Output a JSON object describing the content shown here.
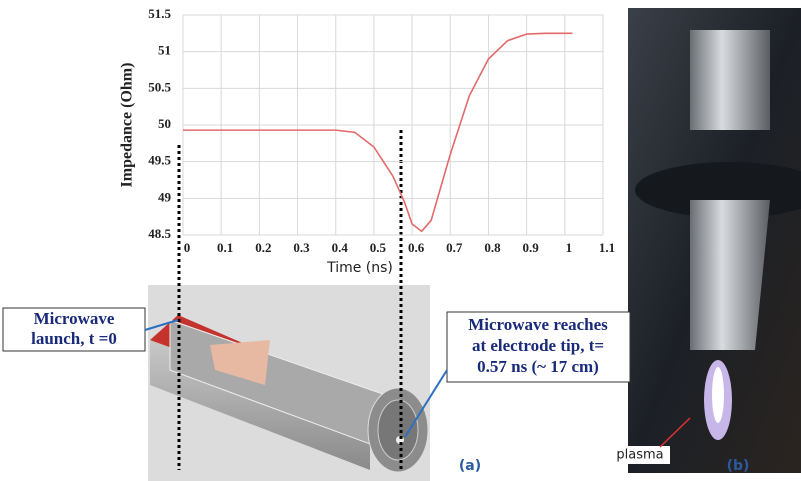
{
  "chart_data": {
    "type": "line",
    "x_label": "Time (ns)",
    "y_label": "Impedance (Ohm)",
    "x": [
      0,
      0.1,
      0.2,
      0.3,
      0.4,
      0.45,
      0.5,
      0.55,
      0.58,
      0.6,
      0.625,
      0.65,
      0.7,
      0.75,
      0.8,
      0.85,
      0.9,
      0.95,
      1.02
    ],
    "series": [
      {
        "color": "#e26a6a",
        "values": [
          49.93,
          49.93,
          49.93,
          49.93,
          49.93,
          49.9,
          49.7,
          49.3,
          48.95,
          48.65,
          48.55,
          48.7,
          49.6,
          50.4,
          50.9,
          51.15,
          51.24,
          51.25,
          51.25
        ]
      }
    ],
    "xlim": [
      0,
      1.1
    ],
    "xticks": [
      0,
      0.1,
      0.2,
      0.3,
      0.4,
      0.5,
      0.6,
      0.7,
      0.8,
      0.9,
      1,
      1.1
    ],
    "ylim": [
      48.5,
      51.5
    ],
    "yticks": [
      48.5,
      49,
      49.5,
      50,
      50.5,
      51,
      51.5
    ],
    "grid": true,
    "launch_note": [
      "Microwave",
      "launch, t =0"
    ],
    "tip_note": [
      "Microwave reaches",
      "at electrode tip, t=",
      "0.57 ns (~ 17 cm)"
    ],
    "panel_labels": [
      "(a)",
      "(b)"
    ],
    "photo_label": "plasma"
  }
}
